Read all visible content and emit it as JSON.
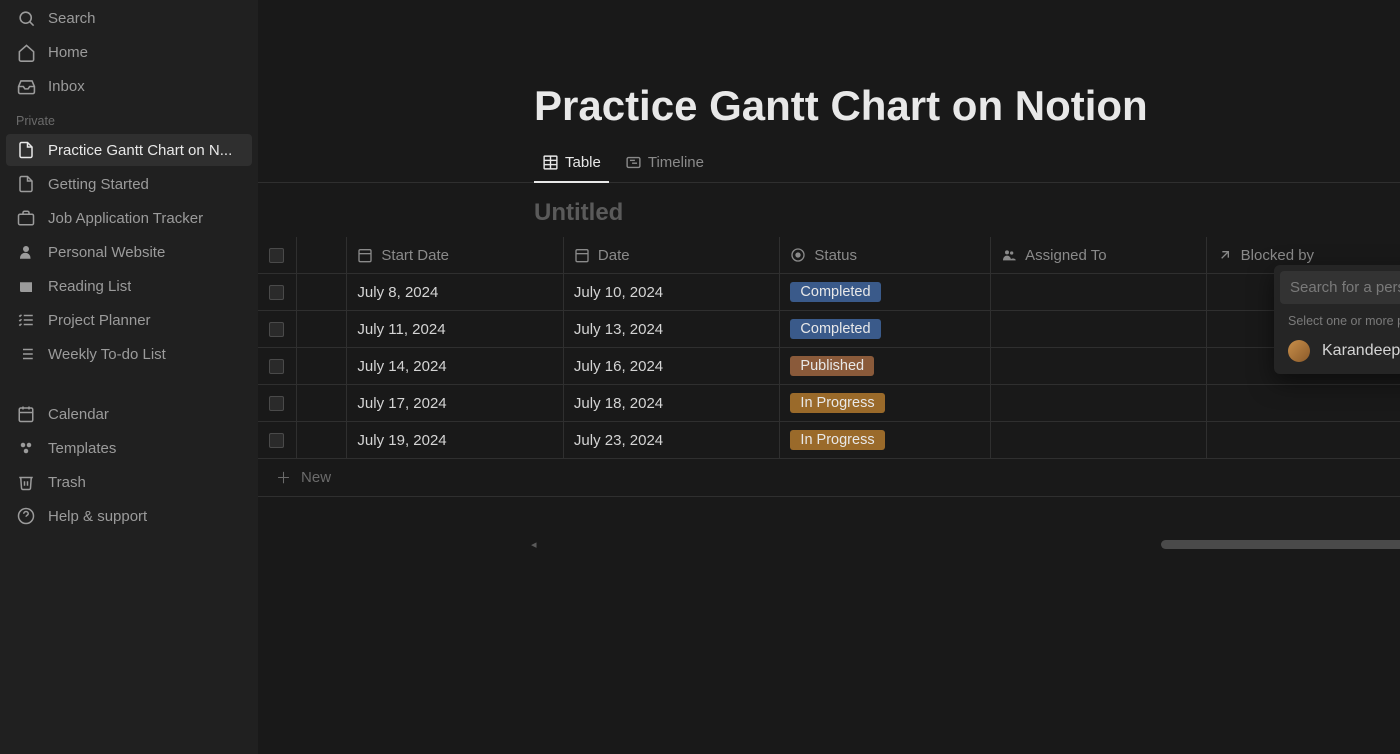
{
  "colors": {
    "bg": "#191919",
    "sidebar_bg": "#202020",
    "text_primary": "#e8e8e8",
    "text_secondary": "#9b9b9b",
    "text_muted": "#6b6b6b",
    "border": "#2f2f2f",
    "badge_completed_bg": "#3a5a8a",
    "badge_published_bg": "#8a5a3a",
    "badge_inprogress_bg": "#9a6a2a"
  },
  "sidebar": {
    "top": [
      {
        "icon": "search",
        "label": "Search"
      },
      {
        "icon": "home",
        "label": "Home"
      },
      {
        "icon": "inbox",
        "label": "Inbox"
      }
    ],
    "section_label": "Private",
    "pages": [
      {
        "icon": "page",
        "label": "Practice Gantt Chart on N...",
        "active": true
      },
      {
        "icon": "page",
        "label": "Getting Started"
      },
      {
        "icon": "briefcase",
        "label": "Job Application Tracker"
      },
      {
        "icon": "person",
        "label": "Personal Website"
      },
      {
        "icon": "book",
        "label": "Reading List"
      },
      {
        "icon": "checklist",
        "label": "Project Planner"
      },
      {
        "icon": "list",
        "label": "Weekly To-do List"
      }
    ],
    "bottom": [
      {
        "icon": "calendar",
        "label": "Calendar"
      },
      {
        "icon": "templates",
        "label": "Templates"
      },
      {
        "icon": "trash",
        "label": "Trash"
      },
      {
        "icon": "help",
        "label": "Help & support"
      }
    ]
  },
  "page": {
    "title": "Practice Gantt Chart on Notion",
    "views": [
      {
        "icon": "table",
        "label": "Table",
        "active": true
      },
      {
        "icon": "timeline",
        "label": "Timeline"
      }
    ],
    "db_title": "Untitled",
    "columns": [
      {
        "icon": "calendar",
        "label": "Start Date"
      },
      {
        "icon": "calendar",
        "label": "Date"
      },
      {
        "icon": "status",
        "label": "Status"
      },
      {
        "icon": "people",
        "label": "Assigned To"
      },
      {
        "icon": "relation",
        "label": "Blocked by"
      }
    ],
    "rows": [
      {
        "start": "July 8, 2024",
        "date": "July 10, 2024",
        "status": "Completed",
        "status_bg": "#3a5a8a"
      },
      {
        "start": "July 11, 2024",
        "date": "July 13, 2024",
        "status": "Completed",
        "status_bg": "#3a5a8a"
      },
      {
        "start": "July 14, 2024",
        "date": "July 16, 2024",
        "status": "Published",
        "status_bg": "#8a5a3a"
      },
      {
        "start": "July 17, 2024",
        "date": "July 18, 2024",
        "status": "In Progress",
        "status_bg": "#9a6a2a"
      },
      {
        "start": "July 19, 2024",
        "date": "July 23, 2024",
        "status": "In Progress",
        "status_bg": "#9a6a2a"
      }
    ],
    "new_row_label": "New"
  },
  "popover": {
    "placeholder": "Search for a person...",
    "hint": "Select one or more people",
    "people": [
      {
        "name": "Karandeep Arora"
      }
    ]
  }
}
